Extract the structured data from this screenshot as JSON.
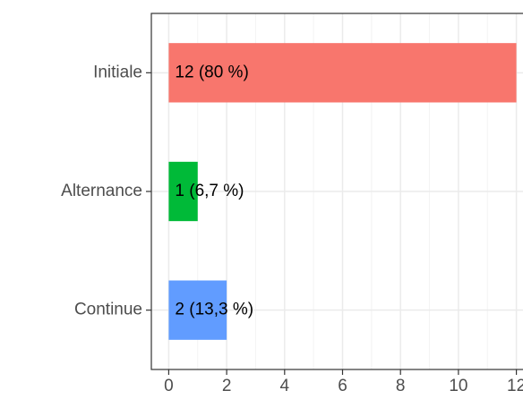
{
  "chart_data": {
    "type": "hbar",
    "categories": [
      "Initiale",
      "Alternance",
      "Continue"
    ],
    "values": [
      12,
      1,
      2
    ],
    "value_labels": [
      "12 (80 %)",
      "1 (6,7 %)",
      "2 (13,3 %)"
    ],
    "colors": [
      "#F8766D",
      "#00BA38",
      "#619CFF"
    ],
    "xlim": [
      -0.6,
      12.6
    ],
    "xticks": [
      0,
      2,
      4,
      6,
      8,
      10,
      12
    ],
    "grid": true
  }
}
